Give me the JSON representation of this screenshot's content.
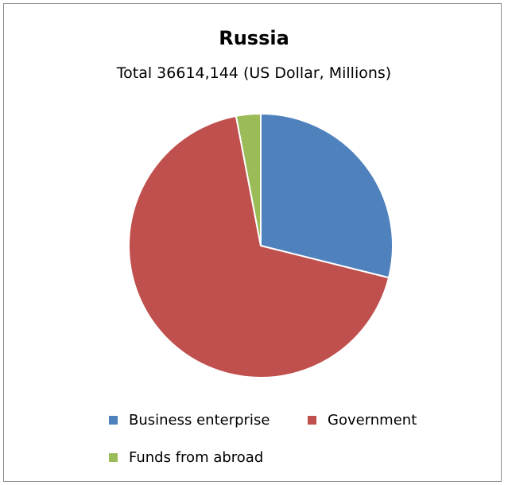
{
  "chart_data": {
    "type": "pie",
    "title": "Russia",
    "subtitle": "Total 36614,144 (US Dollar, Millions)",
    "slices": [
      {
        "label": "Business enterprise",
        "value": 28.9,
        "color": "#4F81BD"
      },
      {
        "label": "Government",
        "value": 68.1,
        "color": "#C0504D"
      },
      {
        "label": "Funds from abroad",
        "value": 3.0,
        "color": "#9BBB59"
      }
    ],
    "legend_position": "bottom"
  }
}
